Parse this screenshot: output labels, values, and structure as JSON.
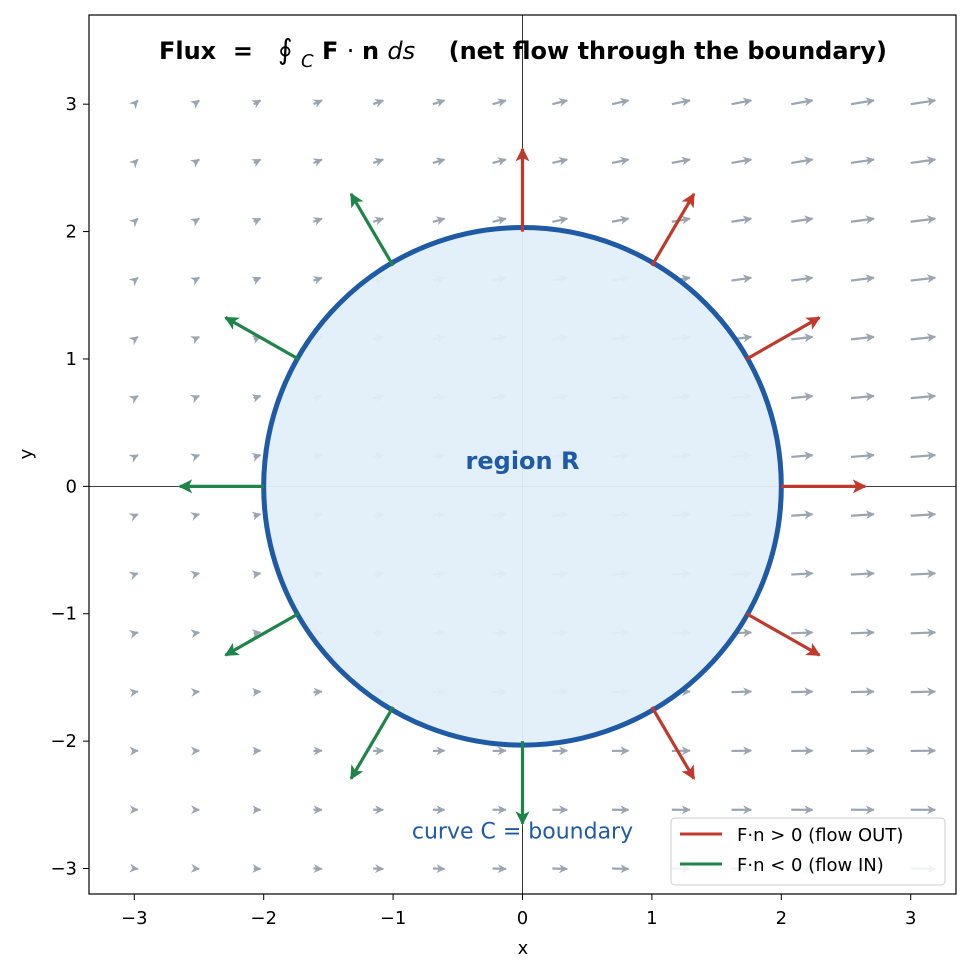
{
  "chart_data": {
    "type": "vector-field",
    "title": {
      "prefix": "Flux  =  ",
      "integral": "∮",
      "subscript": "C",
      "vec_f": "F",
      "dot": " · ",
      "vec_n": "n",
      "ds": " ds",
      "suffix": "   (net flow through the boundary)"
    },
    "xlabel": "x",
    "ylabel": "y",
    "xlim": [
      -3.35,
      3.35
    ],
    "ylim": [
      -3.2,
      3.7
    ],
    "xticks": [
      -3,
      -2,
      -1,
      0,
      1,
      2,
      3
    ],
    "yticks": [
      -3,
      -2,
      -1,
      0,
      1,
      2,
      3
    ],
    "tick_labels": [
      "−3",
      "−2",
      "−1",
      "0",
      "1",
      "2",
      "3"
    ],
    "grid": false,
    "zero_lines": true,
    "field": {
      "grid_range": [
        -3.0,
        3.0
      ],
      "grid_count": 14,
      "formula": "F(x,y) = (1 + 0.25·x, 0.12 + 0.05·y)",
      "color": "#9aa5b1"
    },
    "region": {
      "center": [
        0,
        0
      ],
      "radius": 2.0,
      "fill": "#e1eef9",
      "edge": "#1f5aa6",
      "label": "region  R",
      "label_at": [
        0.0,
        0.2
      ]
    },
    "curve_label": {
      "text": "curve  C = boundary",
      "at": [
        0.0,
        -2.7
      ]
    },
    "normals": [
      {
        "angle_deg": 0,
        "sign": "out"
      },
      {
        "angle_deg": 30,
        "sign": "out"
      },
      {
        "angle_deg": 60,
        "sign": "out"
      },
      {
        "angle_deg": 90,
        "sign": "out"
      },
      {
        "angle_deg": 120,
        "sign": "in"
      },
      {
        "angle_deg": 150,
        "sign": "in"
      },
      {
        "angle_deg": 180,
        "sign": "in"
      },
      {
        "angle_deg": 210,
        "sign": "in"
      },
      {
        "angle_deg": 240,
        "sign": "in"
      },
      {
        "angle_deg": 270,
        "sign": "in"
      },
      {
        "angle_deg": 300,
        "sign": "out"
      },
      {
        "angle_deg": 330,
        "sign": "out"
      }
    ],
    "normal_length": 0.65,
    "colors": {
      "out": "#c0392b",
      "in": "#1e8449"
    },
    "legend": {
      "placement": "lower-right",
      "entries": [
        {
          "label": "F·n > 0  (flow OUT)",
          "color": "#c0392b"
        },
        {
          "label": "F·n < 0  (flow IN)",
          "color": "#1e8449"
        }
      ]
    }
  }
}
